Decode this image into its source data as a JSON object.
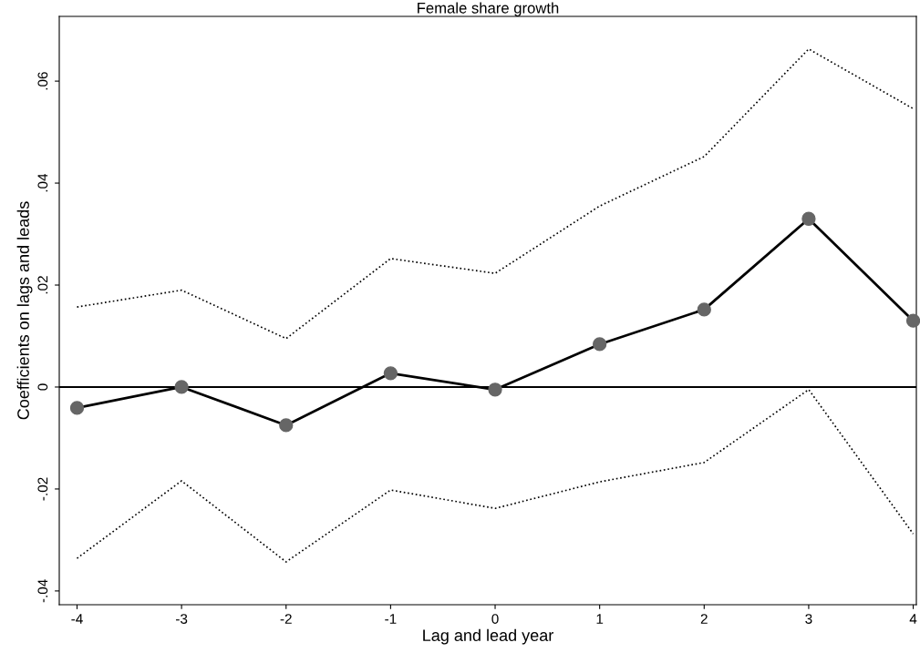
{
  "chart_data": {
    "type": "line",
    "title": "Female share growth",
    "xlabel": "Lag and lead year",
    "ylabel": "Coefficients on lags and leads",
    "x": [
      -4,
      -3,
      -2,
      -1,
      0,
      1,
      2,
      3,
      4
    ],
    "series": [
      {
        "color": "#000000",
        "marker": "circle",
        "line_style": "solid",
        "values": [
          -0.0041,
          0.0,
          -0.0075,
          0.0027,
          -0.0005,
          0.0084,
          0.0152,
          0.033,
          0.013
        ]
      },
      {
        "color": "#000000",
        "marker": "none",
        "line_style": "dotted",
        "values": [
          0.0157,
          0.019,
          0.0095,
          0.0252,
          0.0223,
          0.0355,
          0.0452,
          0.0663,
          0.0546
        ]
      },
      {
        "color": "#000000",
        "marker": "none",
        "line_style": "dotted",
        "values": [
          -0.0336,
          -0.0184,
          -0.0343,
          -0.0202,
          -0.0238,
          -0.0186,
          -0.0148,
          -0.0005,
          -0.0288
        ]
      }
    ],
    "xlim": [
      -4.17,
      4.03
    ],
    "ylim": [
      -0.0427,
      0.0727
    ],
    "xticks": [
      -4,
      -3,
      -2,
      -1,
      0,
      1,
      2,
      3,
      4
    ],
    "yticks": [
      {
        "value": -0.04,
        "label": "-.04"
      },
      {
        "value": -0.02,
        "label": "-.02"
      },
      0,
      {
        "value": 0.02,
        "label": ".02"
      },
      {
        "value": 0.04,
        "label": ".04"
      },
      {
        "value": 0.06,
        "label": ".06"
      }
    ],
    "ref_lines": [
      {
        "axis": "y",
        "value": 0,
        "color": "#000000",
        "line_style": "solid"
      }
    ],
    "grid": false,
    "legend": false
  }
}
